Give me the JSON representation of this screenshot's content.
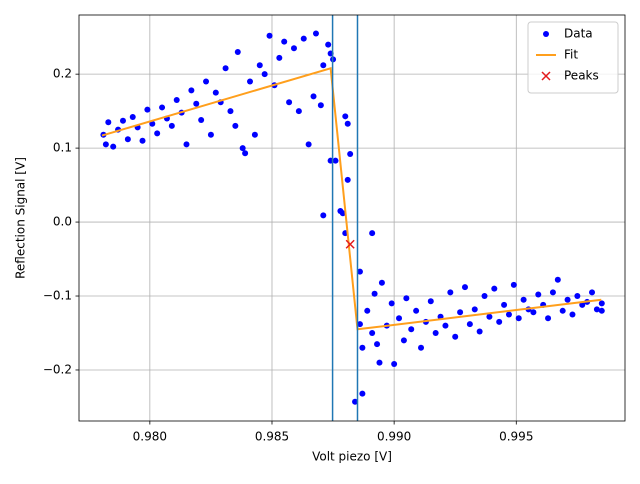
{
  "chart_data": {
    "type": "scatter",
    "x_label": "Volt piezo [V]",
    "y_label": "Reflection Signal [V]",
    "xlim": [
      0.9771,
      0.99945
    ],
    "ylim": [
      -0.269,
      0.28
    ],
    "xticks": [
      {
        "value": 0.98,
        "label": "0.980"
      },
      {
        "value": 0.985,
        "label": "0.985"
      },
      {
        "value": 0.99,
        "label": "0.990"
      },
      {
        "value": 0.995,
        "label": "0.995"
      }
    ],
    "yticks": [
      {
        "value": -0.2,
        "label": "−0.2"
      },
      {
        "value": -0.1,
        "label": "−0.1"
      },
      {
        "value": 0,
        "label": "0.0"
      },
      0.1,
      0.2
    ],
    "grid": true,
    "legend": "upper right",
    "vlines": {
      "color": "#1f77b4",
      "x": [
        0.98748,
        0.9885
      ]
    },
    "series": [
      {
        "name": "Data",
        "type": "scatter",
        "color": "#0000ff",
        "x": [
          0.9781,
          0.9782,
          0.9783,
          0.9785,
          0.9787,
          0.9789,
          0.9791,
          0.9793,
          0.9795,
          0.9797,
          0.9799,
          0.9801,
          0.9803,
          0.9805,
          0.9807,
          0.9809,
          0.9811,
          0.9813,
          0.9815,
          0.9817,
          0.9819,
          0.9821,
          0.9823,
          0.9825,
          0.9827,
          0.9829,
          0.9831,
          0.9833,
          0.9835,
          0.9836,
          0.9838,
          0.9839,
          0.9841,
          0.9843,
          0.9845,
          0.9847,
          0.9849,
          0.9851,
          0.9853,
          0.9855,
          0.9857,
          0.9859,
          0.9861,
          0.9863,
          0.9865,
          0.9867,
          0.9868,
          0.987,
          0.9871,
          0.9873,
          0.9874,
          0.9875,
          0.9874,
          0.9876,
          0.9878,
          0.9879,
          0.988,
          0.9881,
          0.9882,
          0.9881,
          0.988,
          0.9886,
          0.9887,
          0.9884,
          0.9891,
          0.9871,
          0.9886,
          0.9887,
          0.9889,
          0.9891,
          0.9892,
          0.9893,
          0.9894,
          0.9895,
          0.9897,
          0.9899,
          0.99,
          0.9902,
          0.9904,
          0.9905,
          0.9907,
          0.9909,
          0.9911,
          0.9913,
          0.9915,
          0.9917,
          0.9919,
          0.9921,
          0.9923,
          0.9925,
          0.9927,
          0.9929,
          0.9931,
          0.9933,
          0.9935,
          0.9937,
          0.9939,
          0.9941,
          0.9943,
          0.9945,
          0.9947,
          0.9949,
          0.9951,
          0.9953,
          0.9955,
          0.9957,
          0.9959,
          0.9961,
          0.9963,
          0.9965,
          0.9967,
          0.9969,
          0.9971,
          0.9973,
          0.9975,
          0.9977,
          0.9979,
          0.9981,
          0.9983,
          0.9985,
          0.9985
        ],
        "y": [
          0.118,
          0.105,
          0.135,
          0.102,
          0.125,
          0.137,
          0.112,
          0.142,
          0.128,
          0.11,
          0.152,
          0.133,
          0.12,
          0.155,
          0.14,
          0.13,
          0.165,
          0.148,
          0.105,
          0.178,
          0.16,
          0.138,
          0.19,
          0.118,
          0.175,
          0.162,
          0.208,
          0.15,
          0.13,
          0.23,
          0.1,
          0.093,
          0.19,
          0.118,
          0.212,
          0.2,
          0.252,
          0.185,
          0.222,
          0.244,
          0.162,
          0.235,
          0.15,
          0.248,
          0.105,
          0.17,
          0.255,
          0.158,
          0.212,
          0.24,
          0.228,
          0.22,
          0.083,
          0.083,
          0.015,
          0.012,
          -0.015,
          0.057,
          0.092,
          0.133,
          0.143,
          -0.067,
          -0.232,
          -0.243,
          -0.015,
          0.009,
          -0.138,
          -0.17,
          -0.12,
          -0.15,
          -0.097,
          -0.165,
          -0.19,
          -0.082,
          -0.14,
          -0.11,
          -0.192,
          -0.13,
          -0.16,
          -0.103,
          -0.145,
          -0.12,
          -0.17,
          -0.135,
          -0.107,
          -0.15,
          -0.128,
          -0.14,
          -0.095,
          -0.155,
          -0.122,
          -0.088,
          -0.138,
          -0.118,
          -0.148,
          -0.1,
          -0.128,
          -0.09,
          -0.135,
          -0.112,
          -0.125,
          -0.085,
          -0.13,
          -0.105,
          -0.118,
          -0.122,
          -0.098,
          -0.112,
          -0.13,
          -0.095,
          -0.078,
          -0.12,
          -0.105,
          -0.125,
          -0.1,
          -0.112,
          -0.108,
          -0.095,
          -0.118,
          -0.11,
          -0.12
        ]
      },
      {
        "name": "Fit",
        "type": "line",
        "color": "#ff9f1c",
        "x": [
          0.97804,
          0.9874,
          0.9885,
          0.99848
        ],
        "y": [
          0.117,
          0.208,
          -0.145,
          -0.105
        ]
      },
      {
        "name": "Peaks",
        "type": "x",
        "color": "#e31a1c",
        "x": [
          0.9882
        ],
        "y": [
          -0.03
        ]
      }
    ]
  }
}
